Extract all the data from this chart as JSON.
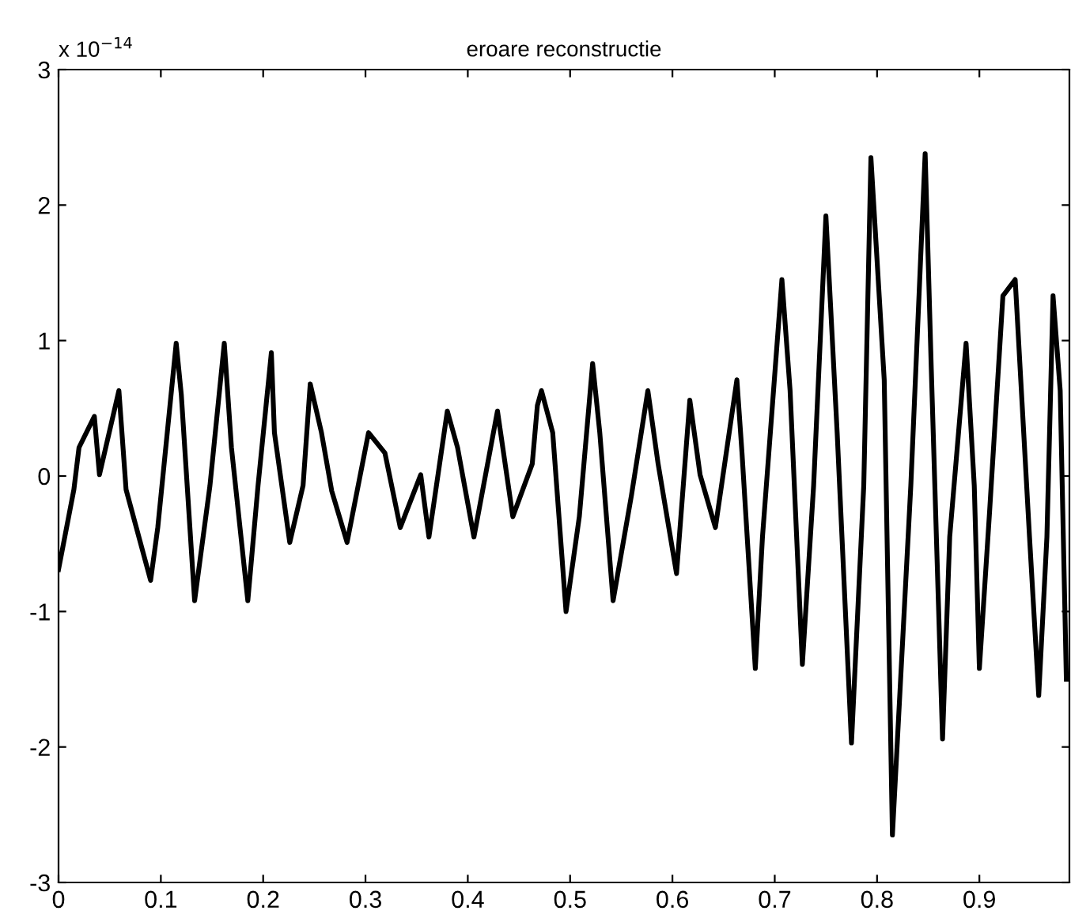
{
  "chart_data": {
    "type": "line",
    "title": "eroare reconstructie",
    "annotations": [
      "x 10$^{−14}$"
    ],
    "xlim": [
      0,
      0.988
    ],
    "xticks": [
      0,
      0.1,
      0.2,
      0.3,
      0.4,
      0.5,
      0.6,
      0.7,
      0.8,
      0.9
    ],
    "ylim": [
      -3,
      3
    ],
    "yticks": [
      -3,
      -2,
      -1,
      0,
      1,
      2,
      3
    ],
    "grid": false,
    "marker": "none",
    "line_style": "solid",
    "x": [
      0,
      0.015,
      0.02,
      0.035,
      0.04,
      0.059,
      0.066,
      0.09,
      0.097,
      0.115,
      0.12,
      0.133,
      0.148,
      0.162,
      0.169,
      0.185,
      0.195,
      0.208,
      0.211,
      0.226,
      0.239,
      0.246,
      0.257,
      0.267,
      0.282,
      0.303,
      0.319,
      0.334,
      0.354,
      0.362,
      0.38,
      0.39,
      0.406,
      0.429,
      0.444,
      0.463,
      0.468,
      0.472,
      0.483,
      0.496,
      0.509,
      0.522,
      0.529,
      0.542,
      0.56,
      0.576,
      0.586,
      0.604,
      0.617,
      0.627,
      0.642,
      0.663,
      0.668,
      0.681,
      0.688,
      0.707,
      0.715,
      0.727,
      0.738,
      0.75,
      0.761,
      0.775,
      0.787,
      0.794,
      0.807,
      0.815,
      0.833,
      0.847,
      0.853,
      0.864,
      0.871,
      0.887,
      0.895,
      0.9,
      0.91,
      0.923,
      0.935,
      0.949,
      0.958,
      0.966,
      0.972,
      0.979,
      0.985
    ],
    "series": [
      {
        "color": "#000000",
        "values": [
          -0.69,
          -0.1,
          0.21,
          0.44,
          0.01,
          0.63,
          -0.1,
          -0.77,
          -0.38,
          0.98,
          0.6,
          -0.92,
          -0.07,
          0.98,
          0.21,
          -0.92,
          -0.07,
          0.91,
          0.32,
          -0.49,
          -0.07,
          0.68,
          0.32,
          -0.11,
          -0.49,
          0.32,
          0.17,
          -0.38,
          0.01,
          -0.45,
          0.48,
          0.21,
          -0.45,
          0.48,
          -0.3,
          0.09,
          0.52,
          0.63,
          0.32,
          -1.0,
          -0.3,
          0.83,
          0.32,
          -0.92,
          -0.14,
          0.63,
          0.09,
          -0.72,
          0.56,
          0.01,
          -0.38,
          0.71,
          0.17,
          -1.42,
          -0.45,
          1.45,
          0.63,
          -1.39,
          -0.07,
          1.92,
          0.32,
          -1.97,
          -0.07,
          2.35,
          0.71,
          -2.65,
          -0.07,
          2.38,
          0.79,
          -1.94,
          -0.45,
          0.98,
          -0.07,
          -1.42,
          -0.26,
          1.33,
          1.45,
          -0.45,
          -1.62,
          -0.45,
          1.33,
          0.63,
          -1.5
        ]
      }
    ]
  }
}
